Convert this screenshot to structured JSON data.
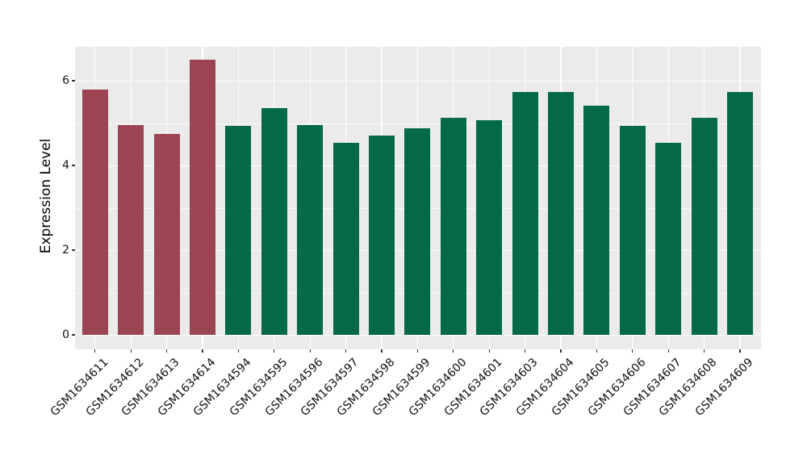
{
  "chart_data": {
    "type": "bar",
    "title": "",
    "xlabel": "",
    "ylabel": "Expression Level",
    "categories": [
      "GSM1634611",
      "GSM1634612",
      "GSM1634613",
      "GSM1634614",
      "GSM1634594",
      "GSM1634595",
      "GSM1634596",
      "GSM1634597",
      "GSM1634598",
      "GSM1634599",
      "GSM1634600",
      "GSM1634601",
      "GSM1634603",
      "GSM1634604",
      "GSM1634605",
      "GSM1634606",
      "GSM1634607",
      "GSM1634608",
      "GSM1634609"
    ],
    "values": [
      5.8,
      4.95,
      4.74,
      6.5,
      4.94,
      5.35,
      4.95,
      4.53,
      4.7,
      4.88,
      5.12,
      5.06,
      5.73,
      5.73,
      5.41,
      4.93,
      4.54,
      5.12,
      5.73
    ],
    "bar_colors": [
      "#9C4452",
      "#9C4452",
      "#9C4452",
      "#9C4452",
      "#046948",
      "#046948",
      "#046948",
      "#046948",
      "#046948",
      "#046948",
      "#046948",
      "#046948",
      "#046948",
      "#046948",
      "#046948",
      "#046948",
      "#046948",
      "#046948",
      "#046948"
    ],
    "group_palette": {
      "highlight_group": "#9C4452",
      "default_group": "#046948"
    },
    "y_ticks": [
      0,
      2,
      4,
      6
    ],
    "y_minor_ticks": [
      1,
      3,
      5
    ],
    "ylim": [
      0,
      6.83
    ],
    "grid": "on",
    "legend": "none",
    "panel_background": "#EBEBEB",
    "gridline_color": "#FFFFFF",
    "text_color": "#111111"
  }
}
